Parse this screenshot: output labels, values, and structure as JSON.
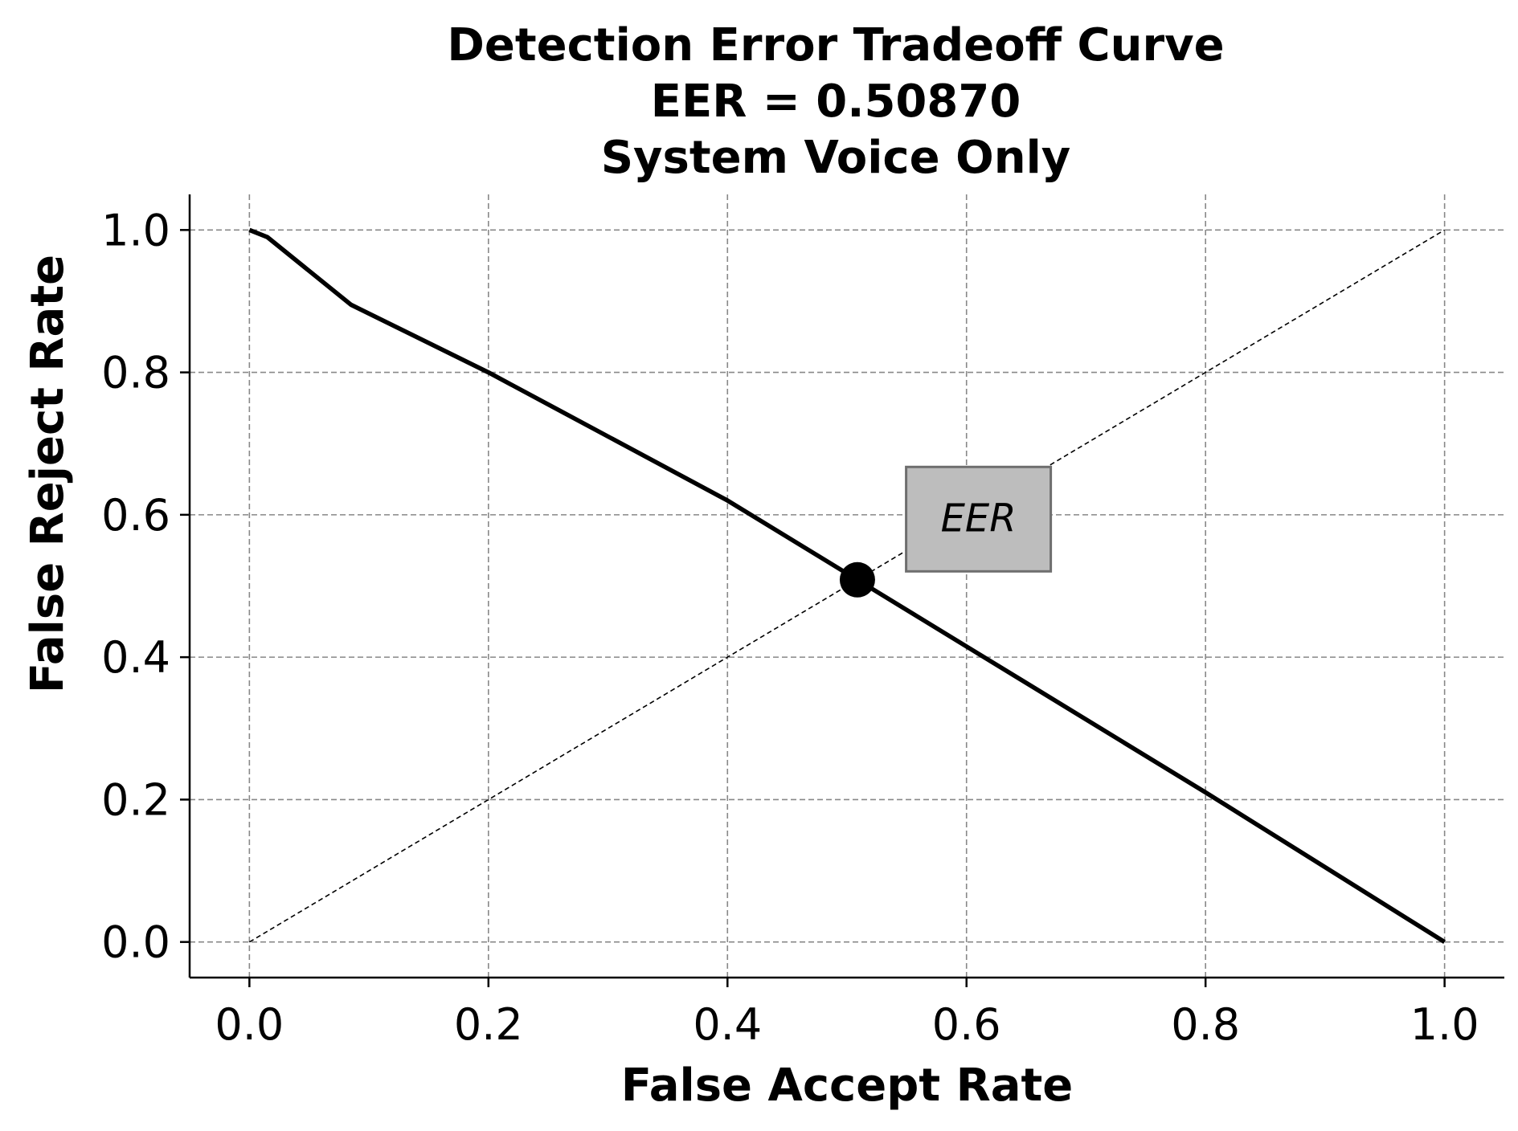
{
  "chart_data": {
    "type": "line",
    "title_lines": [
      "Detection Error Tradeoff Curve",
      "EER = 0.50870",
      "System Voice Only"
    ],
    "xlabel": "False Accept Rate",
    "ylabel": "False Reject Rate",
    "xlim": [
      -0.05,
      1.05
    ],
    "ylim": [
      -0.05,
      1.05
    ],
    "xticks": [
      0.0,
      0.2,
      0.4,
      0.6,
      0.8,
      1.0
    ],
    "yticks": [
      0.0,
      0.2,
      0.4,
      0.6,
      0.8,
      1.0
    ],
    "tick_labels": [
      "0.0",
      "0.2",
      "0.4",
      "0.6",
      "0.8",
      "1.0"
    ],
    "grid": true,
    "series": [
      {
        "x": [
          0.0,
          0.015,
          0.085,
          0.2,
          0.4,
          0.5087,
          0.6,
          0.8,
          1.0
        ],
        "y": [
          1.0,
          0.99,
          0.895,
          0.8,
          0.62,
          0.5087,
          0.415,
          0.21,
          0.0
        ],
        "color": "#000000",
        "style": "solid"
      },
      {
        "x": [
          0.0,
          1.0
        ],
        "y": [
          0.0,
          1.0
        ],
        "color": "#000000",
        "style": "dashed"
      }
    ],
    "eer_point": {
      "x": 0.5087,
      "y": 0.5087
    },
    "annotation": {
      "text": "EER",
      "x": 0.61,
      "y": 0.595,
      "box_color": "#bdbdbd"
    }
  }
}
